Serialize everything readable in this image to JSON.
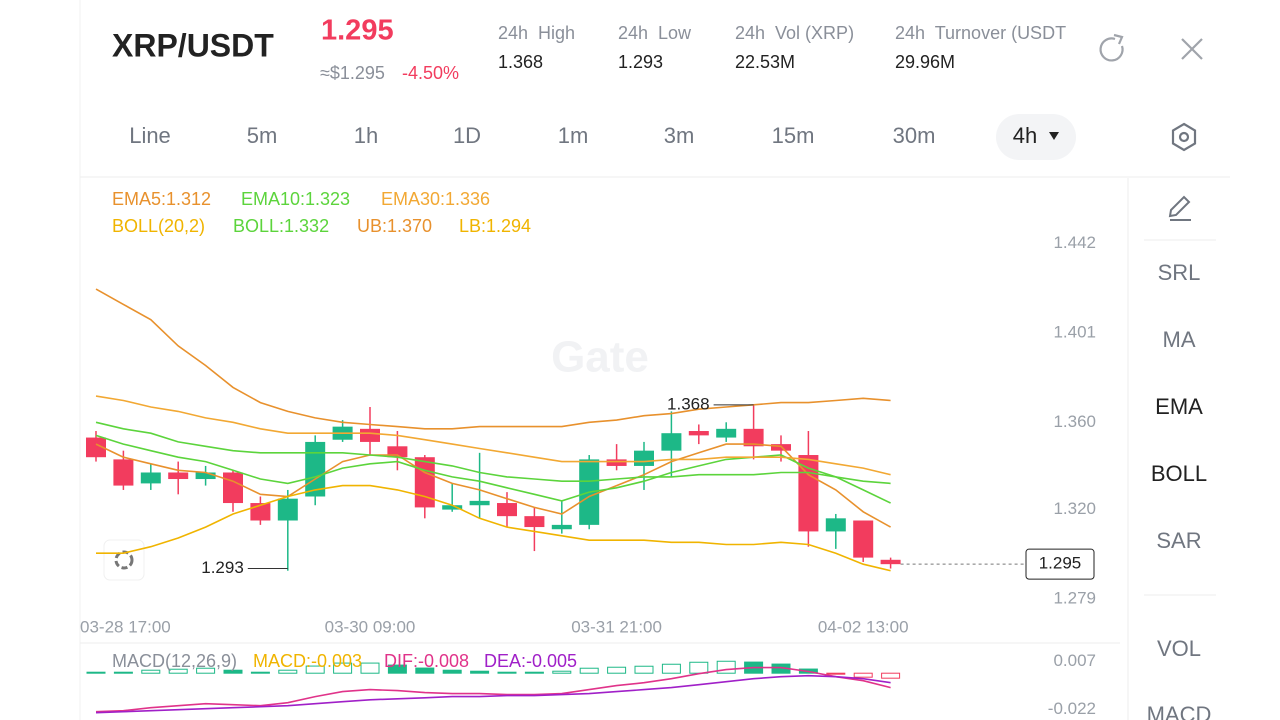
{
  "header": {
    "pair": "XRP/USDT",
    "price": "1.295",
    "usd_price": "≈$1.295",
    "change": "-4.50%",
    "stats": [
      {
        "label": "24h  High",
        "value": "1.368"
      },
      {
        "label": "24h  Low",
        "value": "1.293"
      },
      {
        "label": "24h  Vol (XRP)",
        "value": "22.53M"
      },
      {
        "label": "24h  Turnover (USDT",
        "value": "29.96M"
      }
    ]
  },
  "tabs": [
    "Line",
    "5m",
    "1h",
    "1D",
    "1m",
    "3m",
    "15m",
    "30m",
    "4h"
  ],
  "side_menu": [
    "SRL",
    "MA",
    "EMA",
    "BOLL",
    "SAR",
    "VOL",
    "MACD"
  ],
  "watermark": "Gate",
  "chart_data": [
    {
      "type": "candlestick",
      "x": [
        "03-28 17:00",
        null,
        null,
        null,
        null,
        null,
        null,
        null,
        null,
        null,
        "03-30 09:00",
        null,
        null,
        null,
        null,
        null,
        null,
        null,
        null,
        "03-31 21:00",
        null,
        null,
        null,
        null,
        null,
        null,
        null,
        null,
        "04-02 13:00",
        null
      ],
      "open": [
        1.353,
        1.343,
        1.332,
        1.337,
        1.334,
        1.337,
        1.323,
        1.315,
        1.326,
        1.352,
        1.357,
        1.349,
        1.344,
        1.32,
        1.322,
        1.323,
        1.317,
        1.311,
        1.313,
        1.343,
        1.34,
        1.347,
        1.356,
        1.353,
        1.357,
        1.35,
        1.345,
        1.31,
        1.315,
        1.297
      ],
      "high": [
        1.356,
        1.347,
        1.341,
        1.342,
        1.34,
        1.338,
        1.326,
        1.329,
        1.354,
        1.361,
        1.367,
        1.356,
        1.345,
        1.332,
        1.346,
        1.328,
        1.321,
        1.324,
        1.345,
        1.35,
        1.351,
        1.365,
        1.359,
        1.36,
        1.368,
        1.354,
        1.356,
        1.318,
        1.315,
        1.298
      ],
      "low": [
        1.342,
        1.329,
        1.329,
        1.327,
        1.331,
        1.319,
        1.313,
        1.292,
        1.322,
        1.351,
        1.345,
        1.338,
        1.316,
        1.319,
        1.316,
        1.312,
        1.301,
        1.309,
        1.311,
        1.338,
        1.329,
        1.335,
        1.35,
        1.351,
        1.343,
        1.342,
        1.303,
        1.302,
        1.296,
        1.293
      ],
      "close": [
        1.344,
        1.331,
        1.337,
        1.334,
        1.337,
        1.323,
        1.315,
        1.325,
        1.351,
        1.358,
        1.351,
        1.344,
        1.321,
        1.322,
        1.324,
        1.317,
        1.312,
        1.313,
        1.343,
        1.34,
        1.347,
        1.355,
        1.354,
        1.357,
        1.349,
        1.347,
        1.31,
        1.316,
        1.298,
        1.295
      ],
      "up_color": "#1db887",
      "down_color": "#f23c5e",
      "params_label": "BOLL(20,2)",
      "series": [
        {
          "label": "EMA5:1.312",
          "color": "#e8912d",
          "values": [
            1.35,
            1.344,
            1.341,
            1.338,
            1.337,
            1.333,
            1.327,
            1.326,
            1.334,
            1.342,
            1.345,
            1.345,
            1.337,
            1.332,
            1.329,
            1.325,
            1.321,
            1.318,
            1.326,
            1.331,
            1.336,
            1.342,
            1.346,
            1.35,
            1.35,
            1.349,
            1.336,
            1.329,
            1.319,
            1.312
          ]
        },
        {
          "label": "EMA10:1.323",
          "color": "#5cd43c",
          "values": [
            1.354,
            1.35,
            1.347,
            1.344,
            1.342,
            1.338,
            1.334,
            1.332,
            1.335,
            1.339,
            1.341,
            1.342,
            1.338,
            1.335,
            1.333,
            1.33,
            1.327,
            1.324,
            1.328,
            1.33,
            1.333,
            1.337,
            1.34,
            1.343,
            1.344,
            1.345,
            1.339,
            1.335,
            1.329,
            1.323
          ]
        },
        {
          "label": "EMA30:1.336",
          "color": "#f2a833",
          "values": [
            1.372,
            1.37,
            1.367,
            1.365,
            1.362,
            1.36,
            1.357,
            1.355,
            1.355,
            1.355,
            1.355,
            1.354,
            1.352,
            1.35,
            1.348,
            1.346,
            1.344,
            1.342,
            1.342,
            1.342,
            1.342,
            1.343,
            1.343,
            1.344,
            1.344,
            1.344,
            1.343,
            1.341,
            1.339,
            1.336
          ]
        },
        {
          "label": "BOLL:1.332",
          "color": "#5cd43c",
          "values": [
            1.36,
            1.357,
            1.355,
            1.351,
            1.349,
            1.347,
            1.346,
            1.346,
            1.346,
            1.346,
            1.345,
            1.344,
            1.342,
            1.34,
            1.337,
            1.335,
            1.334,
            1.333,
            1.333,
            1.334,
            1.335,
            1.335,
            1.336,
            1.336,
            1.336,
            1.337,
            1.337,
            1.335,
            1.333,
            1.332
          ]
        },
        {
          "label": "UB:1.370",
          "color": "#e8912d",
          "values": [
            1.421,
            1.414,
            1.407,
            1.395,
            1.386,
            1.376,
            1.369,
            1.365,
            1.362,
            1.36,
            1.359,
            1.358,
            1.357,
            1.357,
            1.358,
            1.358,
            1.358,
            1.358,
            1.36,
            1.361,
            1.363,
            1.364,
            1.366,
            1.367,
            1.368,
            1.369,
            1.369,
            1.37,
            1.371,
            1.37
          ]
        },
        {
          "label": "LB:1.294",
          "color": "#f0b400",
          "values": [
            1.3,
            1.3,
            1.303,
            1.307,
            1.312,
            1.318,
            1.322,
            1.326,
            1.329,
            1.331,
            1.331,
            1.329,
            1.326,
            1.322,
            1.316,
            1.312,
            1.31,
            1.308,
            1.306,
            1.306,
            1.306,
            1.305,
            1.305,
            1.304,
            1.304,
            1.305,
            1.304,
            1.3,
            1.295,
            1.292
          ]
        }
      ],
      "ylim": [
        1.274,
        1.471
      ],
      "yticks": [
        1.279,
        {
          "value": 1.32,
          "label": "1.320"
        },
        {
          "value": 1.36,
          "label": "1.360"
        },
        1.401,
        1.442
      ],
      "high_mark": 1.368,
      "low_mark": 1.293,
      "last_price": 1.295
    },
    {
      "type": "macd",
      "title": "MACD(12,26,9)",
      "hist": {
        "label": "MACD:-0.003",
        "color": "#f0b400",
        "up_color": "#1db887",
        "down_color": "#f23c5e",
        "values": [
          0.0006,
          0.0006,
          0.0018,
          0.0024,
          0.003,
          0.0018,
          0.0006,
          0.0018,
          0.0043,
          0.0061,
          0.0061,
          0.0049,
          0.0031,
          0.0018,
          0.0012,
          0.0006,
          0.0006,
          0.0012,
          0.003,
          0.0036,
          0.0042,
          0.0054,
          0.0066,
          0.0072,
          0.0067,
          0.0055,
          0.0025,
          -0.0006,
          -0.0024,
          -0.003
        ]
      },
      "series": [
        {
          "label": "DIF:-0.008",
          "color": "#e0338a",
          "values": [
            -0.0232,
            -0.0226,
            -0.0208,
            -0.0196,
            -0.0184,
            -0.019,
            -0.0196,
            -0.0178,
            -0.0141,
            -0.0111,
            -0.0099,
            -0.0105,
            -0.0117,
            -0.0123,
            -0.0123,
            -0.0129,
            -0.0129,
            -0.0123,
            -0.0099,
            -0.0075,
            -0.0057,
            -0.0033,
            -0.0003,
            0.0022,
            0.0034,
            0.0034,
            0.001,
            -0.0021,
            -0.0045,
            -0.0087
          ]
        },
        {
          "label": "DEA:-0.005",
          "color": "#a020c8",
          "values": [
            -0.0238,
            -0.0232,
            -0.0226,
            -0.022,
            -0.0214,
            -0.0208,
            -0.0202,
            -0.0196,
            -0.0184,
            -0.0172,
            -0.016,
            -0.0154,
            -0.0148,
            -0.0141,
            -0.0141,
            -0.0135,
            -0.0135,
            -0.0129,
            -0.0123,
            -0.0111,
            -0.0099,
            -0.0087,
            -0.0069,
            -0.0051,
            -0.0033,
            -0.0021,
            -0.0015,
            -0.0021,
            -0.0033,
            -0.0057
          ]
        }
      ],
      "ylim": [
        -0.027,
        0.017
      ],
      "yticks": [
        -0.022,
        0.007
      ]
    }
  ]
}
